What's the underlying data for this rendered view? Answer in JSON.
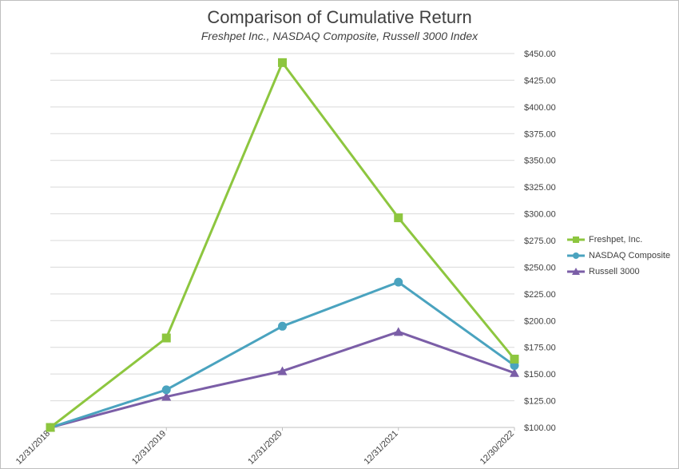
{
  "chart_data": {
    "type": "line",
    "title": "Comparison of Cumulative Return",
    "subtitle": "Freshpet Inc., NASDAQ Composite, Russell 3000 Index",
    "categories": [
      "12/31/2018",
      "12/31/2019",
      "12/31/2020",
      "12/31/2021",
      "12/30/2022"
    ],
    "series": [
      {
        "name": "Freshpet, Inc.",
        "color": "#8dc63f",
        "marker": "square",
        "values": [
          100.0,
          183.75,
          441.5,
          296.25,
          164.0
        ]
      },
      {
        "name": "NASDAQ Composite",
        "color": "#4aa3bf",
        "marker": "circle",
        "values": [
          100.0,
          135.25,
          194.75,
          236.0,
          158.0
        ]
      },
      {
        "name": "Russell 3000",
        "color": "#7b5ea7",
        "marker": "triangle",
        "values": [
          100.0,
          128.75,
          152.75,
          189.5,
          151.0
        ]
      }
    ],
    "ylim": [
      100,
      450
    ],
    "y_ticks": [
      "$100.00",
      "$125.00",
      "$150.00",
      "$175.00",
      "$200.00",
      "$225.00",
      "$250.00",
      "$275.00",
      "$300.00",
      "$325.00",
      "$350.00",
      "$375.00",
      "$400.00",
      "$425.00",
      "$450.00"
    ],
    "y_axis_side": "right",
    "grid": true,
    "legend_position": "right"
  }
}
